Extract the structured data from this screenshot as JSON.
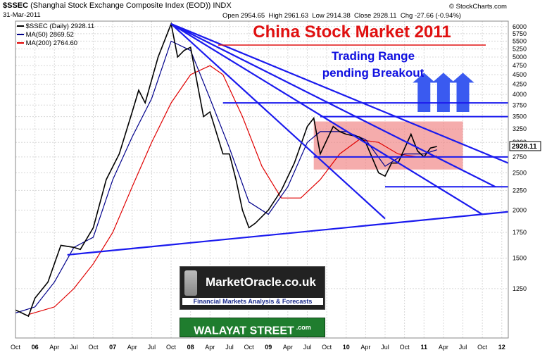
{
  "header": {
    "symbol": "$SSEC",
    "description": "(Shanghai Stock Exchange Composite Index (EOD))",
    "exchange": "INDX",
    "date": "31-Mar-2011",
    "open": "Open 2954.65",
    "high": "High 2961.63",
    "low": "Low 2914.38",
    "close": "Close 2928.11",
    "change": "Chg -27.66 (-0.94%)",
    "credit": "© StockCharts.com",
    "legend_price": "$SSEC (Daily) 2928.11",
    "legend_ma50": "MA(50) 2869.52",
    "legend_ma200": "MA(200) 2764.60"
  },
  "title": "China Stock Market 2011",
  "annotation": {
    "line1": "Trading Range",
    "line2": "pending Breakout"
  },
  "branding": {
    "logo": "MarketOracle.co.uk",
    "tagline": "Financial Markets Analysis & Forecasts",
    "walayat": "WALAYAT STREET",
    "walayat_suffix": ".com"
  },
  "colors": {
    "price": "#000000",
    "ma50": "#00008b",
    "ma200": "#e00000",
    "trendlines": "#1a1aee",
    "range_box": "#f08080",
    "arrows": "#3a5af0"
  },
  "chart_data": {
    "type": "line",
    "y_scale": "log",
    "ylim": [
      930,
      6200
    ],
    "y_ticks": [
      1250,
      1500,
      1750,
      2000,
      2250,
      2500,
      2750,
      3000,
      3250,
      3500,
      3750,
      4000,
      4250,
      4500,
      4750,
      5000,
      5250,
      5500,
      5750,
      6000
    ],
    "x_ticks": [
      "Oct",
      "06",
      "Apr",
      "Jul",
      "Oct",
      "07",
      "Apr",
      "Jul",
      "Oct",
      "08",
      "Apr",
      "Jul",
      "Oct",
      "09",
      "Apr",
      "Jul",
      "Oct",
      "10",
      "Apr",
      "Jul",
      "Oct",
      "11",
      "Apr",
      "Jul",
      "Oct",
      "12"
    ],
    "x_tick_dates": [
      "2005-10",
      "2006-01",
      "2006-04",
      "2006-07",
      "2006-10",
      "2007-01",
      "2007-04",
      "2007-07",
      "2007-10",
      "2008-01",
      "2008-04",
      "2008-07",
      "2008-10",
      "2009-01",
      "2009-04",
      "2009-07",
      "2009-10",
      "2010-01",
      "2010-04",
      "2010-07",
      "2010-10",
      "2011-01",
      "2011-04",
      "2011-07",
      "2011-10",
      "2012-01"
    ],
    "x_range": [
      "2005-10",
      "2012-02"
    ],
    "price_label": "2928.11",
    "price_series": [
      [
        "2005-10",
        1100
      ],
      [
        "2005-12",
        1060
      ],
      [
        "2006-01",
        1180
      ],
      [
        "2006-03",
        1300
      ],
      [
        "2006-05",
        1620
      ],
      [
        "2006-07",
        1600
      ],
      [
        "2006-08",
        1580
      ],
      [
        "2006-10",
        1800
      ],
      [
        "2006-12",
        2400
      ],
      [
        "2007-02",
        2800
      ],
      [
        "2007-04",
        3600
      ],
      [
        "2007-05",
        4100
      ],
      [
        "2007-06",
        3800
      ],
      [
        "2007-08",
        5000
      ],
      [
        "2007-10",
        6100
      ],
      [
        "2007-11",
        5000
      ],
      [
        "2007-12",
        5200
      ],
      [
        "2008-01",
        5300
      ],
      [
        "2008-02",
        4300
      ],
      [
        "2008-03",
        3500
      ],
      [
        "2008-04",
        3600
      ],
      [
        "2008-06",
        2800
      ],
      [
        "2008-07",
        2800
      ],
      [
        "2008-08",
        2400
      ],
      [
        "2008-09",
        2000
      ],
      [
        "2008-10",
        1800
      ],
      [
        "2008-11",
        1850
      ],
      [
        "2009-01",
        2000
      ],
      [
        "2009-03",
        2250
      ],
      [
        "2009-05",
        2650
      ],
      [
        "2009-07",
        3300
      ],
      [
        "2009-08",
        3470
      ],
      [
        "2009-09",
        2800
      ],
      [
        "2009-11",
        3300
      ],
      [
        "2009-12",
        3200
      ],
      [
        "2010-01",
        3150
      ],
      [
        "2010-03",
        3100
      ],
      [
        "2010-04",
        3000
      ],
      [
        "2010-06",
        2500
      ],
      [
        "2010-07",
        2450
      ],
      [
        "2010-08",
        2650
      ],
      [
        "2010-09",
        2650
      ],
      [
        "2010-11",
        3150
      ],
      [
        "2010-12",
        2850
      ],
      [
        "2011-01",
        2750
      ],
      [
        "2011-02",
        2900
      ],
      [
        "2011-03",
        2928
      ]
    ],
    "ma50_series": [
      [
        "2005-10",
        1080
      ],
      [
        "2006-01",
        1120
      ],
      [
        "2006-04",
        1300
      ],
      [
        "2006-07",
        1600
      ],
      [
        "2006-10",
        1700
      ],
      [
        "2007-01",
        2400
      ],
      [
        "2007-04",
        3100
      ],
      [
        "2007-07",
        3900
      ],
      [
        "2007-10",
        5500
      ],
      [
        "2008-01",
        5200
      ],
      [
        "2008-04",
        3900
      ],
      [
        "2008-07",
        2900
      ],
      [
        "2008-10",
        2100
      ],
      [
        "2009-01",
        1950
      ],
      [
        "2009-04",
        2300
      ],
      [
        "2009-07",
        3000
      ],
      [
        "2009-09",
        3200
      ],
      [
        "2010-01",
        3200
      ],
      [
        "2010-04",
        3050
      ],
      [
        "2010-07",
        2600
      ],
      [
        "2010-10",
        2800
      ],
      [
        "2011-01",
        2800
      ],
      [
        "2011-03",
        2870
      ]
    ],
    "ma200_series": [
      [
        "2005-12",
        1070
      ],
      [
        "2006-04",
        1120
      ],
      [
        "2006-07",
        1250
      ],
      [
        "2006-10",
        1450
      ],
      [
        "2007-01",
        1750
      ],
      [
        "2007-04",
        2300
      ],
      [
        "2007-07",
        3000
      ],
      [
        "2007-10",
        3800
      ],
      [
        "2008-01",
        4500
      ],
      [
        "2008-04",
        4750
      ],
      [
        "2008-06",
        4500
      ],
      [
        "2008-09",
        3500
      ],
      [
        "2008-12",
        2600
      ],
      [
        "2009-03",
        2150
      ],
      [
        "2009-06",
        2150
      ],
      [
        "2009-09",
        2400
      ],
      [
        "2009-12",
        2800
      ],
      [
        "2010-03",
        3050
      ],
      [
        "2010-06",
        3000
      ],
      [
        "2010-09",
        2800
      ],
      [
        "2010-12",
        2750
      ],
      [
        "2011-03",
        2765
      ]
    ],
    "trendlines": [
      {
        "from": [
          "2007-10",
          6100
        ],
        "to": [
          "2010-07",
          1900
        ]
      },
      {
        "from": [
          "2007-10",
          6100
        ],
        "to": [
          "2011-10",
          1950
        ]
      },
      {
        "from": [
          "2007-10",
          6100
        ],
        "to": [
          "2011-12",
          2300
        ]
      },
      {
        "from": [
          "2007-10",
          6100
        ],
        "to": [
          "2012-02",
          2650
        ]
      },
      {
        "from": [
          "2006-06",
          1530
        ],
        "to": [
          "2012-02",
          1980
        ]
      }
    ],
    "horizontal_levels": [
      {
        "y": 3800,
        "from": "2008-06",
        "to": "2012-02"
      },
      {
        "y": 3500,
        "from": "2009-09",
        "to": "2012-02"
      },
      {
        "y": 2750,
        "from": "2009-08",
        "to": "2012-02"
      },
      {
        "y": 2300,
        "from": "2010-07",
        "to": "2012-02"
      }
    ],
    "range_box": {
      "x": [
        "2009-08",
        "2011-07"
      ],
      "y": [
        2550,
        3400
      ]
    },
    "breakout_arrows_x": [
      "2011-01",
      "2011-04",
      "2011-07"
    ],
    "breakout_arrows_y": [
      3600,
      4550
    ]
  }
}
